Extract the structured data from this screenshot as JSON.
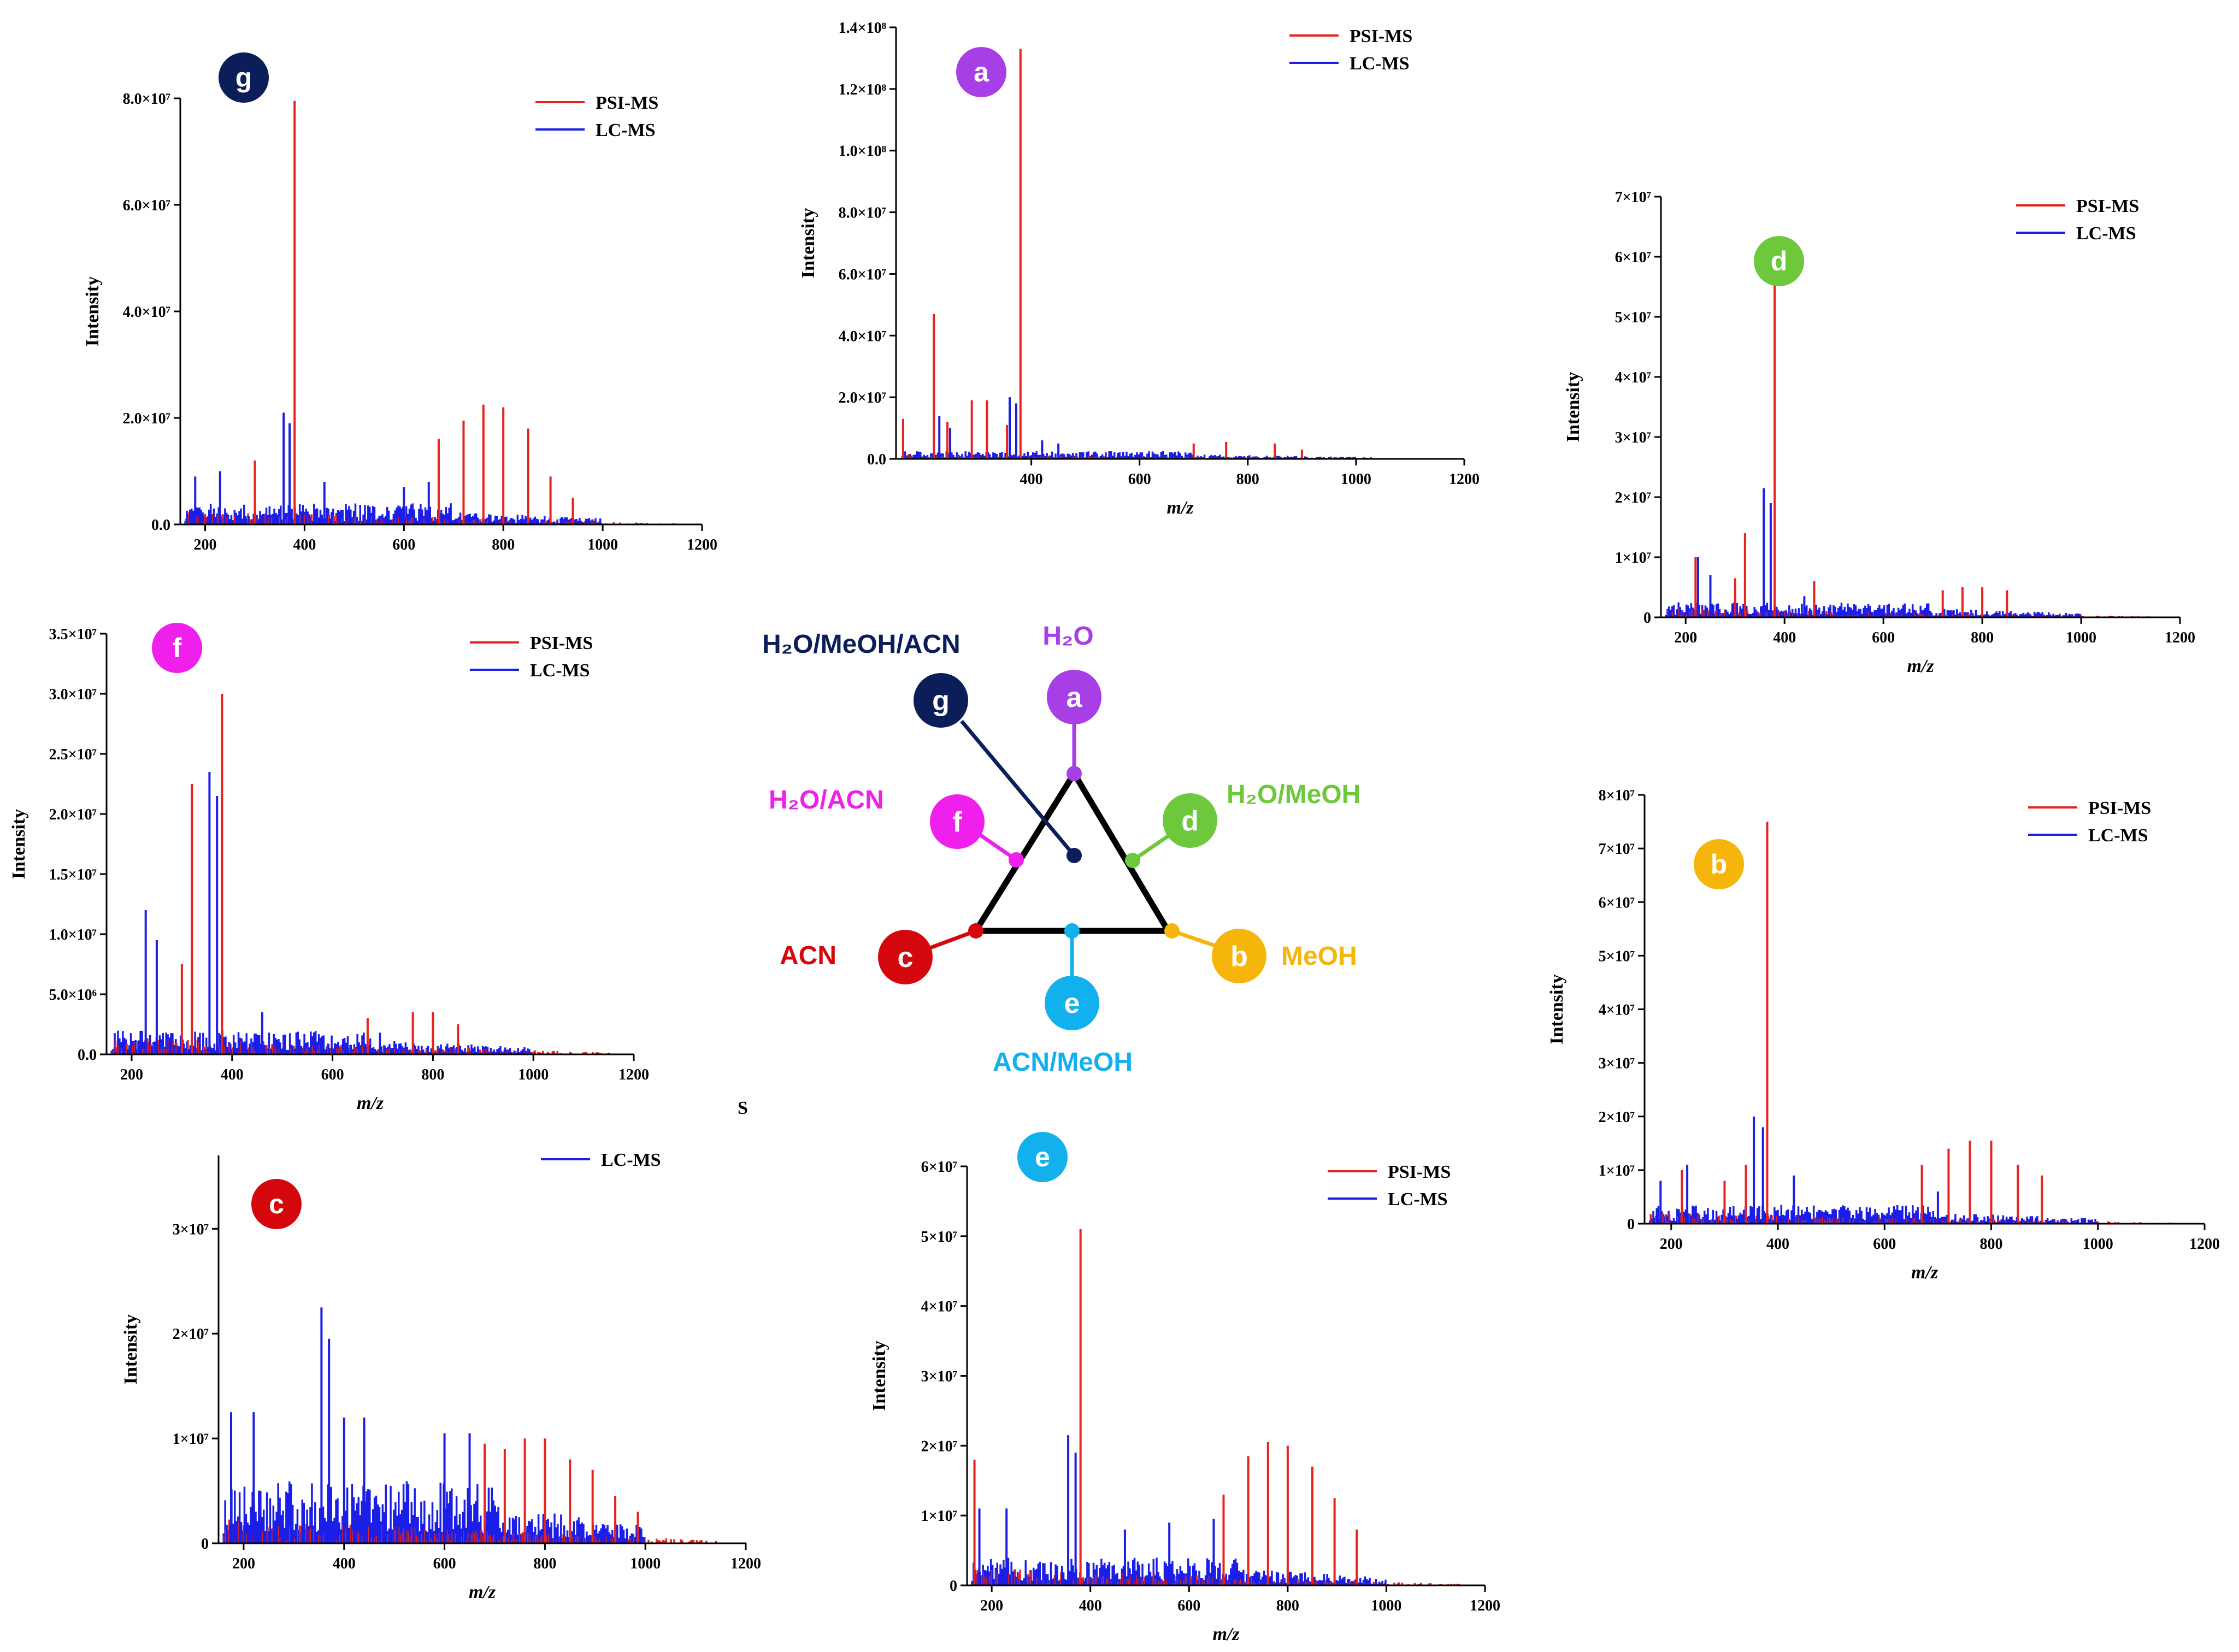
{
  "colors": {
    "psi": "#e8221e",
    "lc": "#1a1ee6",
    "axis": "#000000"
  },
  "center": {
    "labels": {
      "a": "H₂O",
      "b": "MeOH",
      "c": "ACN",
      "d": "H₂O/MeOH",
      "e": "ACN/MeOH",
      "f": "H₂O/ACN",
      "g": "H₂O/MeOH/ACN"
    },
    "badge_colors": {
      "a": "#a83ee6",
      "b": "#f5b50a",
      "c": "#d4080c",
      "d": "#6dc83c",
      "e": "#12b0ec",
      "f": "#f020ec",
      "g": "#0c1e5a"
    }
  },
  "chart_data": [
    {
      "id": "a",
      "type": "bar",
      "xlabel": "m/z",
      "ylabel": "Intensity",
      "xlim": [
        150,
        1200
      ],
      "ylim": [
        0,
        140000000
      ],
      "xticks": [
        "400",
        "600",
        "800",
        "1000",
        "1200"
      ],
      "yticks": [
        "0.0",
        "2.0×10⁷",
        "4.0×10⁷",
        "6.0×10⁷",
        "8.0×10⁷",
        "1.0×10⁸",
        "1.2×10⁸",
        "1.4×10⁸"
      ],
      "legend": [
        "PSI-MS",
        "LC-MS"
      ],
      "psi_peaks": [
        [
          163,
          13000000
        ],
        [
          220,
          47000000
        ],
        [
          245,
          12000000
        ],
        [
          290,
          19000000
        ],
        [
          318,
          19000000
        ],
        [
          355,
          11000000
        ],
        [
          380,
          133000000
        ],
        [
          700,
          5000000
        ],
        [
          760,
          5500000
        ],
        [
          850,
          5000000
        ],
        [
          900,
          3000000
        ]
      ],
      "lc_peaks": [
        [
          230,
          14000000
        ],
        [
          250,
          10000000
        ],
        [
          360,
          20000000
        ],
        [
          372,
          18000000
        ],
        [
          420,
          6000000
        ],
        [
          450,
          5000000
        ]
      ],
      "psi_floor": 1500000,
      "lc_floor": 2500000,
      "lc_max": 1040
    },
    {
      "id": "b",
      "type": "bar",
      "xlabel": "m/z",
      "ylabel": "Intensity",
      "xlim": [
        150,
        1200
      ],
      "ylim": [
        0,
        80000000
      ],
      "xticks": [
        "200",
        "400",
        "600",
        "800",
        "1000",
        "1200"
      ],
      "yticks": [
        "0",
        "1×10⁷",
        "2×10⁷",
        "3×10⁷",
        "4×10⁷",
        "5×10⁷",
        "6×10⁷",
        "7×10⁷",
        "8×10⁷"
      ],
      "legend": [
        "PSI-MS",
        "LC-MS"
      ],
      "psi_peaks": [
        [
          220,
          10000000
        ],
        [
          300,
          8000000
        ],
        [
          340,
          11000000
        ],
        [
          380,
          75000000
        ],
        [
          670,
          11000000
        ],
        [
          720,
          14000000
        ],
        [
          760,
          15500000
        ],
        [
          800,
          15500000
        ],
        [
          850,
          11000000
        ],
        [
          895,
          9000000
        ]
      ],
      "lc_peaks": [
        [
          180,
          8000000
        ],
        [
          230,
          11000000
        ],
        [
          355,
          20000000
        ],
        [
          372,
          18000000
        ],
        [
          430,
          9000000
        ],
        [
          700,
          6000000
        ]
      ],
      "psi_floor": 2000000,
      "lc_floor": 3500000,
      "lc_max": 1000
    },
    {
      "id": "c",
      "type": "bar",
      "xlabel": "m/z",
      "ylabel": "Intensity",
      "xlim": [
        150,
        1200
      ],
      "ylim": [
        0,
        37000000
      ],
      "xticks": [
        "200",
        "400",
        "600",
        "800",
        "1000",
        "1200"
      ],
      "yticks": [
        "0",
        "1×10⁷",
        "2×10⁷",
        "3×10⁷"
      ],
      "legend": [
        "S",
        "LC-MS"
      ],
      "psi_peaks": [
        [
          680,
          9500000
        ],
        [
          720,
          9000000
        ],
        [
          760,
          10000000
        ],
        [
          800,
          10000000
        ],
        [
          850,
          8000000
        ],
        [
          895,
          7000000
        ],
        [
          940,
          4500000
        ],
        [
          985,
          3000000
        ]
      ],
      "lc_peaks": [
        [
          175,
          12500000
        ],
        [
          220,
          12500000
        ],
        [
          355,
          22500000
        ],
        [
          370,
          19500000
        ],
        [
          400,
          12000000
        ],
        [
          440,
          12000000
        ],
        [
          600,
          10500000
        ],
        [
          650,
          10500000
        ]
      ],
      "psi_floor": 2500000,
      "lc_floor": 6000000,
      "lc_max": 1000
    },
    {
      "id": "d",
      "type": "bar",
      "xlabel": "m/z",
      "ylabel": "Intensity",
      "xlim": [
        150,
        1200
      ],
      "ylim": [
        0,
        70000000
      ],
      "xticks": [
        "200",
        "400",
        "600",
        "800",
        "1000",
        "1200"
      ],
      "yticks": [
        "0",
        "1×10⁷",
        "2×10⁷",
        "3×10⁷",
        "4×10⁷",
        "5×10⁷",
        "6×10⁷",
        "7×10⁷"
      ],
      "legend": [
        "PSI-MS",
        "LC-MS"
      ],
      "psi_peaks": [
        [
          220,
          10000000
        ],
        [
          300,
          6500000
        ],
        [
          320,
          14000000
        ],
        [
          380,
          62000000
        ],
        [
          460,
          6000000
        ],
        [
          720,
          4500000
        ],
        [
          760,
          5000000
        ],
        [
          800,
          5000000
        ],
        [
          850,
          4500000
        ]
      ],
      "lc_peaks": [
        [
          225,
          10000000
        ],
        [
          250,
          7000000
        ],
        [
          358,
          21500000
        ],
        [
          372,
          19000000
        ],
        [
          440,
          3500000
        ]
      ],
      "psi_floor": 1500000,
      "lc_floor": 2500000,
      "lc_max": 1000
    },
    {
      "id": "e",
      "type": "bar",
      "xlabel": "m/z",
      "ylabel": "Intensity",
      "xlim": [
        150,
        1200
      ],
      "ylim": [
        0,
        60000000
      ],
      "xticks": [
        "200",
        "400",
        "600",
        "800",
        "1000",
        "1200"
      ],
      "yticks": [
        "0",
        "1×10⁷",
        "2×10⁷",
        "3×10⁷",
        "4×10⁷",
        "5×10⁷",
        "6×10⁷"
      ],
      "legend": [
        "PSI-MS",
        "LC-MS"
      ],
      "psi_peaks": [
        [
          165,
          18000000
        ],
        [
          380,
          51000000
        ],
        [
          670,
          13000000
        ],
        [
          720,
          18500000
        ],
        [
          760,
          20500000
        ],
        [
          800,
          20000000
        ],
        [
          850,
          17000000
        ],
        [
          895,
          12500000
        ],
        [
          940,
          8000000
        ]
      ],
      "lc_peaks": [
        [
          175,
          11000000
        ],
        [
          230,
          11000000
        ],
        [
          355,
          21500000
        ],
        [
          370,
          19000000
        ],
        [
          470,
          8000000
        ],
        [
          560,
          9000000
        ],
        [
          650,
          9500000
        ]
      ],
      "psi_floor": 2500000,
      "lc_floor": 4000000,
      "lc_max": 1000
    },
    {
      "id": "f",
      "type": "bar",
      "xlabel": "m/z",
      "ylabel": "Intensity",
      "xlim": [
        150,
        1200
      ],
      "ylim": [
        0,
        35000000
      ],
      "xticks": [
        "200",
        "400",
        "600",
        "800",
        "1000",
        "1200"
      ],
      "yticks": [
        "0.0",
        "5.0×10⁶",
        "1.0×10⁷",
        "1.5×10⁷",
        "2.0×10⁷",
        "2.5×10⁷",
        "3.0×10⁷",
        "3.5×10⁷"
      ],
      "legend": [
        "PSI-MS",
        "LC-MS"
      ],
      "psi_peaks": [
        [
          300,
          7500000
        ],
        [
          320,
          22500000
        ],
        [
          380,
          30000000
        ],
        [
          670,
          3000000
        ],
        [
          760,
          3500000
        ],
        [
          800,
          3500000
        ],
        [
          850,
          2500000
        ]
      ],
      "lc_peaks": [
        [
          228,
          12000000
        ],
        [
          250,
          9500000
        ],
        [
          355,
          23500000
        ],
        [
          370,
          21500000
        ],
        [
          460,
          3500000
        ]
      ],
      "psi_floor": 1500000,
      "lc_floor": 2000000,
      "lc_max": 1000
    },
    {
      "id": "g",
      "type": "bar",
      "xlabel": "",
      "ylabel": "Intensity",
      "xlim": [
        150,
        1200
      ],
      "ylim": [
        0,
        80000000
      ],
      "xticks": [
        "200",
        "400",
        "600",
        "800",
        "1000",
        "1200"
      ],
      "yticks": [
        "0.0",
        "2.0×10⁷",
        "4.0×10⁷",
        "6.0×10⁷",
        "8.0×10⁷"
      ],
      "legend": [
        "PSI-MS",
        "LC-MS"
      ],
      "psi_peaks": [
        [
          300,
          12000000
        ],
        [
          380,
          79500000
        ],
        [
          670,
          16000000
        ],
        [
          720,
          19500000
        ],
        [
          760,
          22500000
        ],
        [
          800,
          22000000
        ],
        [
          850,
          18000000
        ],
        [
          895,
          9000000
        ],
        [
          940,
          5000000
        ]
      ],
      "lc_peaks": [
        [
          180,
          9000000
        ],
        [
          230,
          10000000
        ],
        [
          358,
          21000000
        ],
        [
          370,
          19000000
        ],
        [
          440,
          8000000
        ],
        [
          600,
          7000000
        ],
        [
          650,
          8000000
        ]
      ],
      "psi_floor": 2500000,
      "lc_floor": 4000000,
      "lc_max": 1000
    }
  ]
}
